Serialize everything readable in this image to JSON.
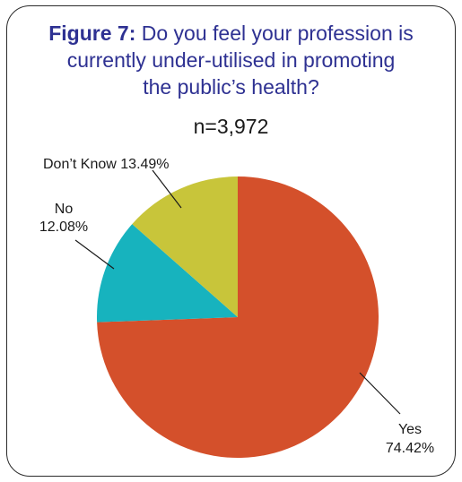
{
  "figure": {
    "title_bold": "Figure 7:",
    "title_line1_rest": " Do you feel your profession is",
    "title_line2": "currently under-utilised in promoting",
    "title_line3": "the public’s health?",
    "n": "n=3,972"
  },
  "colors": {
    "title": "#2e3192",
    "yes": "#d4502b",
    "no": "#17b3be",
    "dont_know": "#c8c53a"
  },
  "chart_data": {
    "type": "pie",
    "title": "Do you feel your profession is currently under-utilised in promoting the public’s health?",
    "slices": [
      {
        "label": "Yes",
        "value": 74.42,
        "display": "74.42%",
        "color": "#d4502b"
      },
      {
        "label": "No",
        "value": 12.08,
        "display": "12.08%",
        "color": "#17b3be"
      },
      {
        "label": "Don’t Know",
        "value": 13.49,
        "display": "13.49%",
        "color": "#c8c53a"
      }
    ],
    "start": "12 o'clock",
    "direction": "clockwise"
  },
  "labels": {
    "yes_name": "Yes",
    "yes_pct": "74.42%",
    "no_name": "No",
    "no_pct": "12.08%",
    "dont_know_full": "Don’t Know 13.49%"
  }
}
